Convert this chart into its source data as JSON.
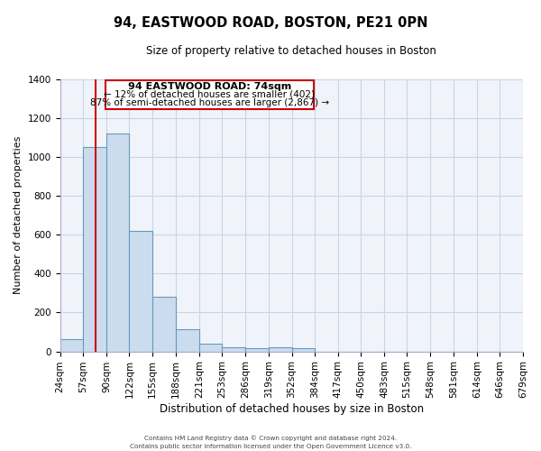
{
  "title": "94, EASTWOOD ROAD, BOSTON, PE21 0PN",
  "subtitle": "Size of property relative to detached houses in Boston",
  "xlabel": "Distribution of detached houses by size in Boston",
  "ylabel": "Number of detached properties",
  "bar_edges": [
    24,
    57,
    90,
    122,
    155,
    188,
    221,
    253,
    286,
    319,
    352,
    384,
    417,
    450,
    483,
    515,
    548,
    581,
    614,
    646,
    679
  ],
  "bar_heights": [
    65,
    1050,
    1120,
    620,
    280,
    115,
    40,
    20,
    18,
    20,
    18,
    0,
    0,
    0,
    0,
    0,
    0,
    0,
    0,
    0
  ],
  "bar_color": "#ccdcef",
  "bar_edge_color": "#6699bb",
  "property_line_x": 74,
  "property_line_color": "#cc0000",
  "annotation_box_color": "#cc0000",
  "annotation_text_line1": "94 EASTWOOD ROAD: 74sqm",
  "annotation_text_line2": "← 12% of detached houses are smaller (402)",
  "annotation_text_line3": "87% of semi-detached houses are larger (2,867) →",
  "ylim": [
    0,
    1400
  ],
  "yticks": [
    0,
    200,
    400,
    600,
    800,
    1000,
    1200,
    1400
  ],
  "tick_labels": [
    "24sqm",
    "57sqm",
    "90sqm",
    "122sqm",
    "155sqm",
    "188sqm",
    "221sqm",
    "253sqm",
    "286sqm",
    "319sqm",
    "352sqm",
    "384sqm",
    "417sqm",
    "450sqm",
    "483sqm",
    "515sqm",
    "548sqm",
    "581sqm",
    "614sqm",
    "646sqm",
    "679sqm"
  ],
  "footer_line1": "Contains HM Land Registry data © Crown copyright and database right 2024.",
  "footer_line2": "Contains public sector information licensed under the Open Government Licence v3.0.",
  "background_color": "#f0f4fa",
  "grid_color": "#c8d4e8"
}
